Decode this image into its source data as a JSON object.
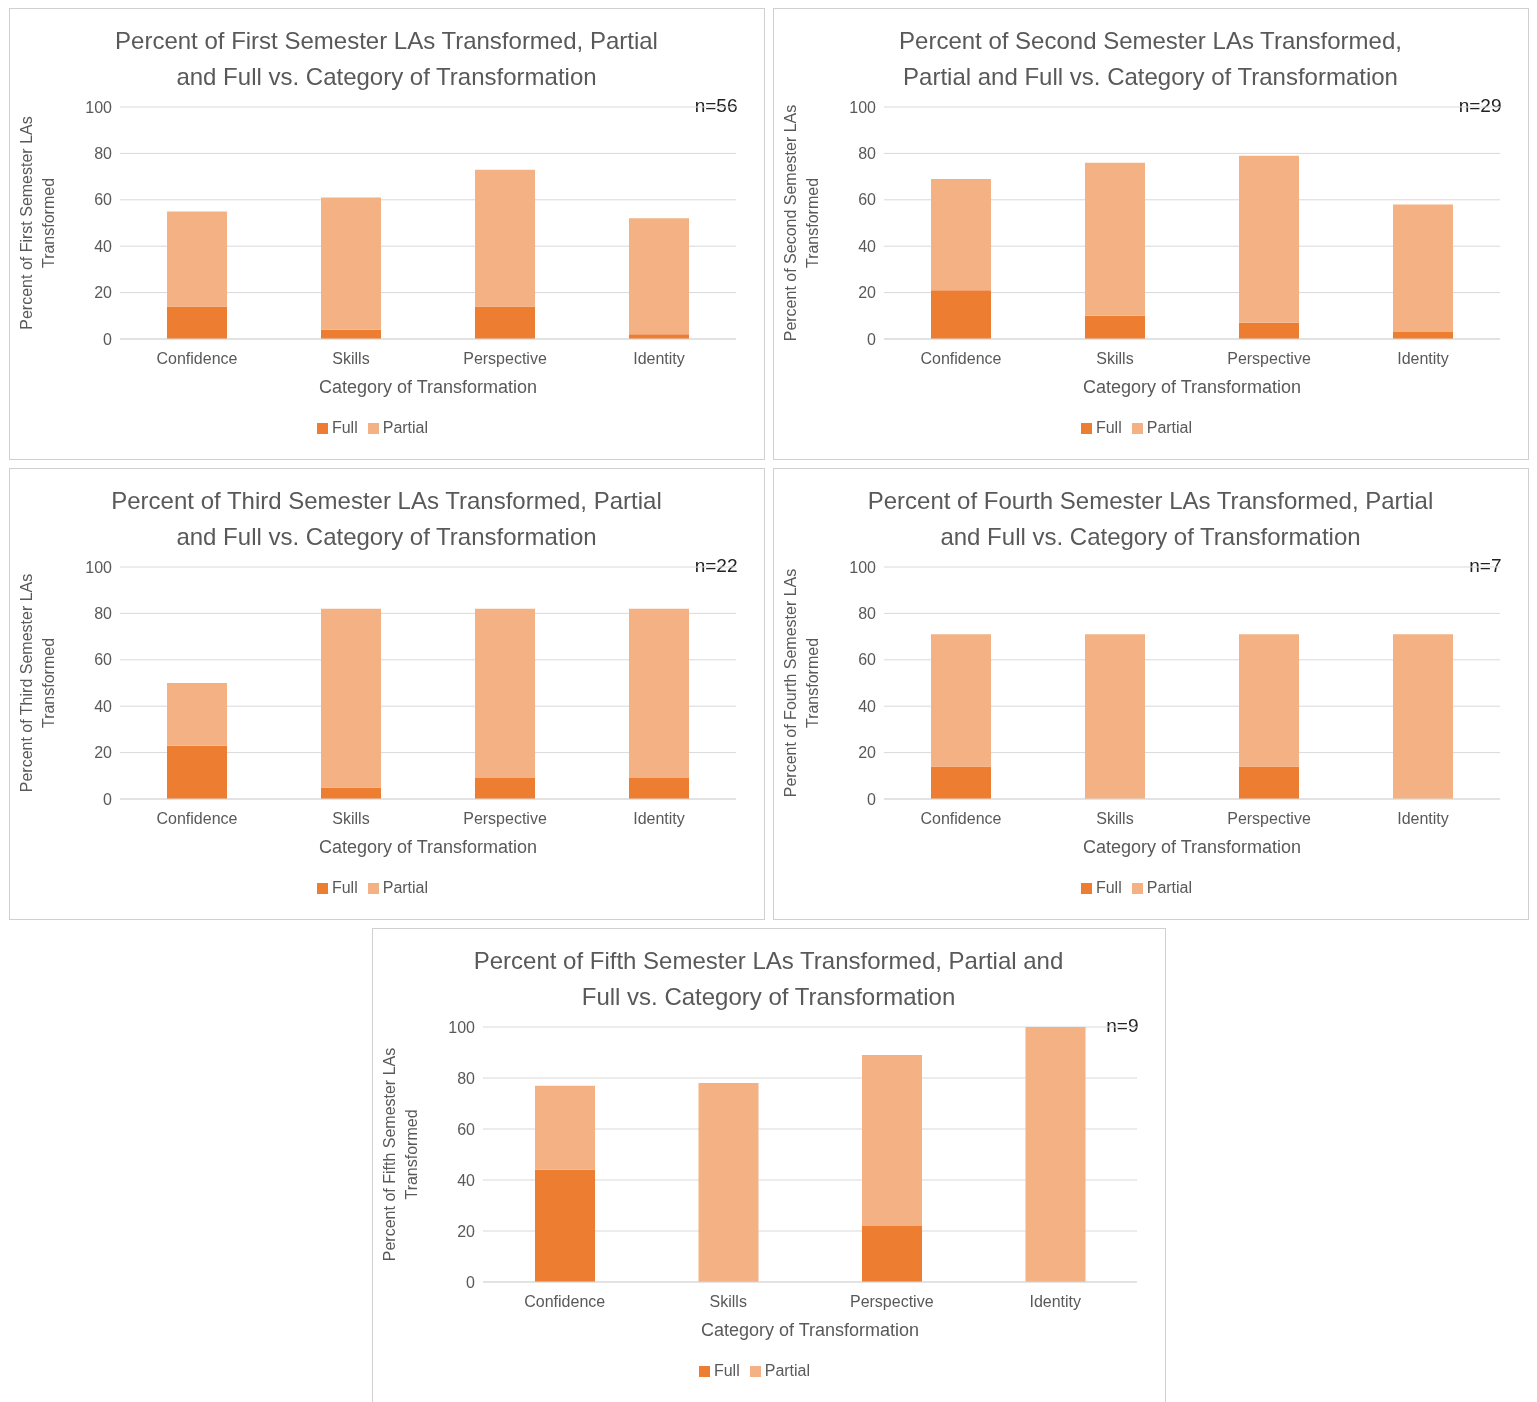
{
  "chart_data": [
    {
      "type": "bar",
      "title": "Percent of First Semester LAs Transformed, Partial and Full vs. Category of Transformation",
      "xlabel": "Category of Transformation",
      "ylabel": "Percent of First Semester LAs Transformed",
      "annotations": [
        "n=56"
      ],
      "categories": [
        "Confidence",
        "Skills",
        "Perspective",
        "Identity"
      ],
      "stacked": true,
      "series": [
        {
          "name": "Full",
          "color": "#ed7d31",
          "values": [
            14,
            4,
            14,
            2
          ]
        },
        {
          "name": "Partial",
          "color": "#f4b183",
          "values": [
            41,
            57,
            59,
            50
          ]
        }
      ],
      "ylim": [
        0,
        100
      ],
      "yticks": [
        0,
        20,
        40,
        60,
        80,
        100
      ],
      "grid": "y",
      "legend": "bottom"
    },
    {
      "type": "bar",
      "title": "Percent of Second Semester LAs Transformed, Partial and Full vs. Category of Transformation",
      "xlabel": "Category of Transformation",
      "ylabel": "Percent of Second Semester LAs Transformed",
      "annotations": [
        "n=29"
      ],
      "categories": [
        "Confidence",
        "Skills",
        "Perspective",
        "Identity"
      ],
      "stacked": true,
      "series": [
        {
          "name": "Full",
          "color": "#ed7d31",
          "values": [
            21,
            10,
            7,
            3
          ]
        },
        {
          "name": "Partial",
          "color": "#f4b183",
          "values": [
            48,
            66,
            72,
            55
          ]
        }
      ],
      "ylim": [
        0,
        100
      ],
      "yticks": [
        0,
        20,
        40,
        60,
        80,
        100
      ],
      "grid": "y",
      "legend": "bottom"
    },
    {
      "type": "bar",
      "title": "Percent of Third Semester LAs Transformed, Partial and Full vs. Category of Transformation",
      "xlabel": "Category of Transformation",
      "ylabel": "Percent of Third Semester LAs Transformed",
      "annotations": [
        "n=22"
      ],
      "categories": [
        "Confidence",
        "Skills",
        "Perspective",
        "Identity"
      ],
      "stacked": true,
      "series": [
        {
          "name": "Full",
          "color": "#ed7d31",
          "values": [
            23,
            5,
            9,
            9
          ]
        },
        {
          "name": "Partial",
          "color": "#f4b183",
          "values": [
            27,
            77,
            73,
            73
          ]
        }
      ],
      "ylim": [
        0,
        100
      ],
      "yticks": [
        0,
        20,
        40,
        60,
        80,
        100
      ],
      "grid": "y",
      "legend": "bottom"
    },
    {
      "type": "bar",
      "title": "Percent of Fourth Semester LAs Transformed, Partial and Full vs. Category of Transformation",
      "xlabel": "Category of Transformation",
      "ylabel": "Percent of Fourth Semester LAs Transformed",
      "annotations": [
        "n=7"
      ],
      "categories": [
        "Confidence",
        "Skills",
        "Perspective",
        "Identity"
      ],
      "stacked": true,
      "series": [
        {
          "name": "Full",
          "color": "#ed7d31",
          "values": [
            14,
            0,
            14,
            0
          ]
        },
        {
          "name": "Partial",
          "color": "#f4b183",
          "values": [
            57,
            71,
            57,
            71
          ]
        }
      ],
      "ylim": [
        0,
        100
      ],
      "yticks": [
        0,
        20,
        40,
        60,
        80,
        100
      ],
      "grid": "y",
      "legend": "bottom"
    },
    {
      "type": "bar",
      "title": "Percent of Fifth Semester LAs Transformed, Partial and Full vs. Category of Transformation",
      "xlabel": "Category of Transformation",
      "ylabel": "Percent of Fifth Semester LAs Transformed",
      "annotations": [
        "n=9"
      ],
      "categories": [
        "Confidence",
        "Skills",
        "Perspective",
        "Identity"
      ],
      "stacked": true,
      "series": [
        {
          "name": "Full",
          "color": "#ed7d31",
          "values": [
            44,
            0,
            22,
            0
          ]
        },
        {
          "name": "Partial",
          "color": "#f4b183",
          "values": [
            33,
            78,
            67,
            100
          ]
        }
      ],
      "ylim": [
        0,
        100
      ],
      "yticks": [
        0,
        20,
        40,
        60,
        80,
        100
      ],
      "grid": "y",
      "legend": "bottom"
    }
  ]
}
